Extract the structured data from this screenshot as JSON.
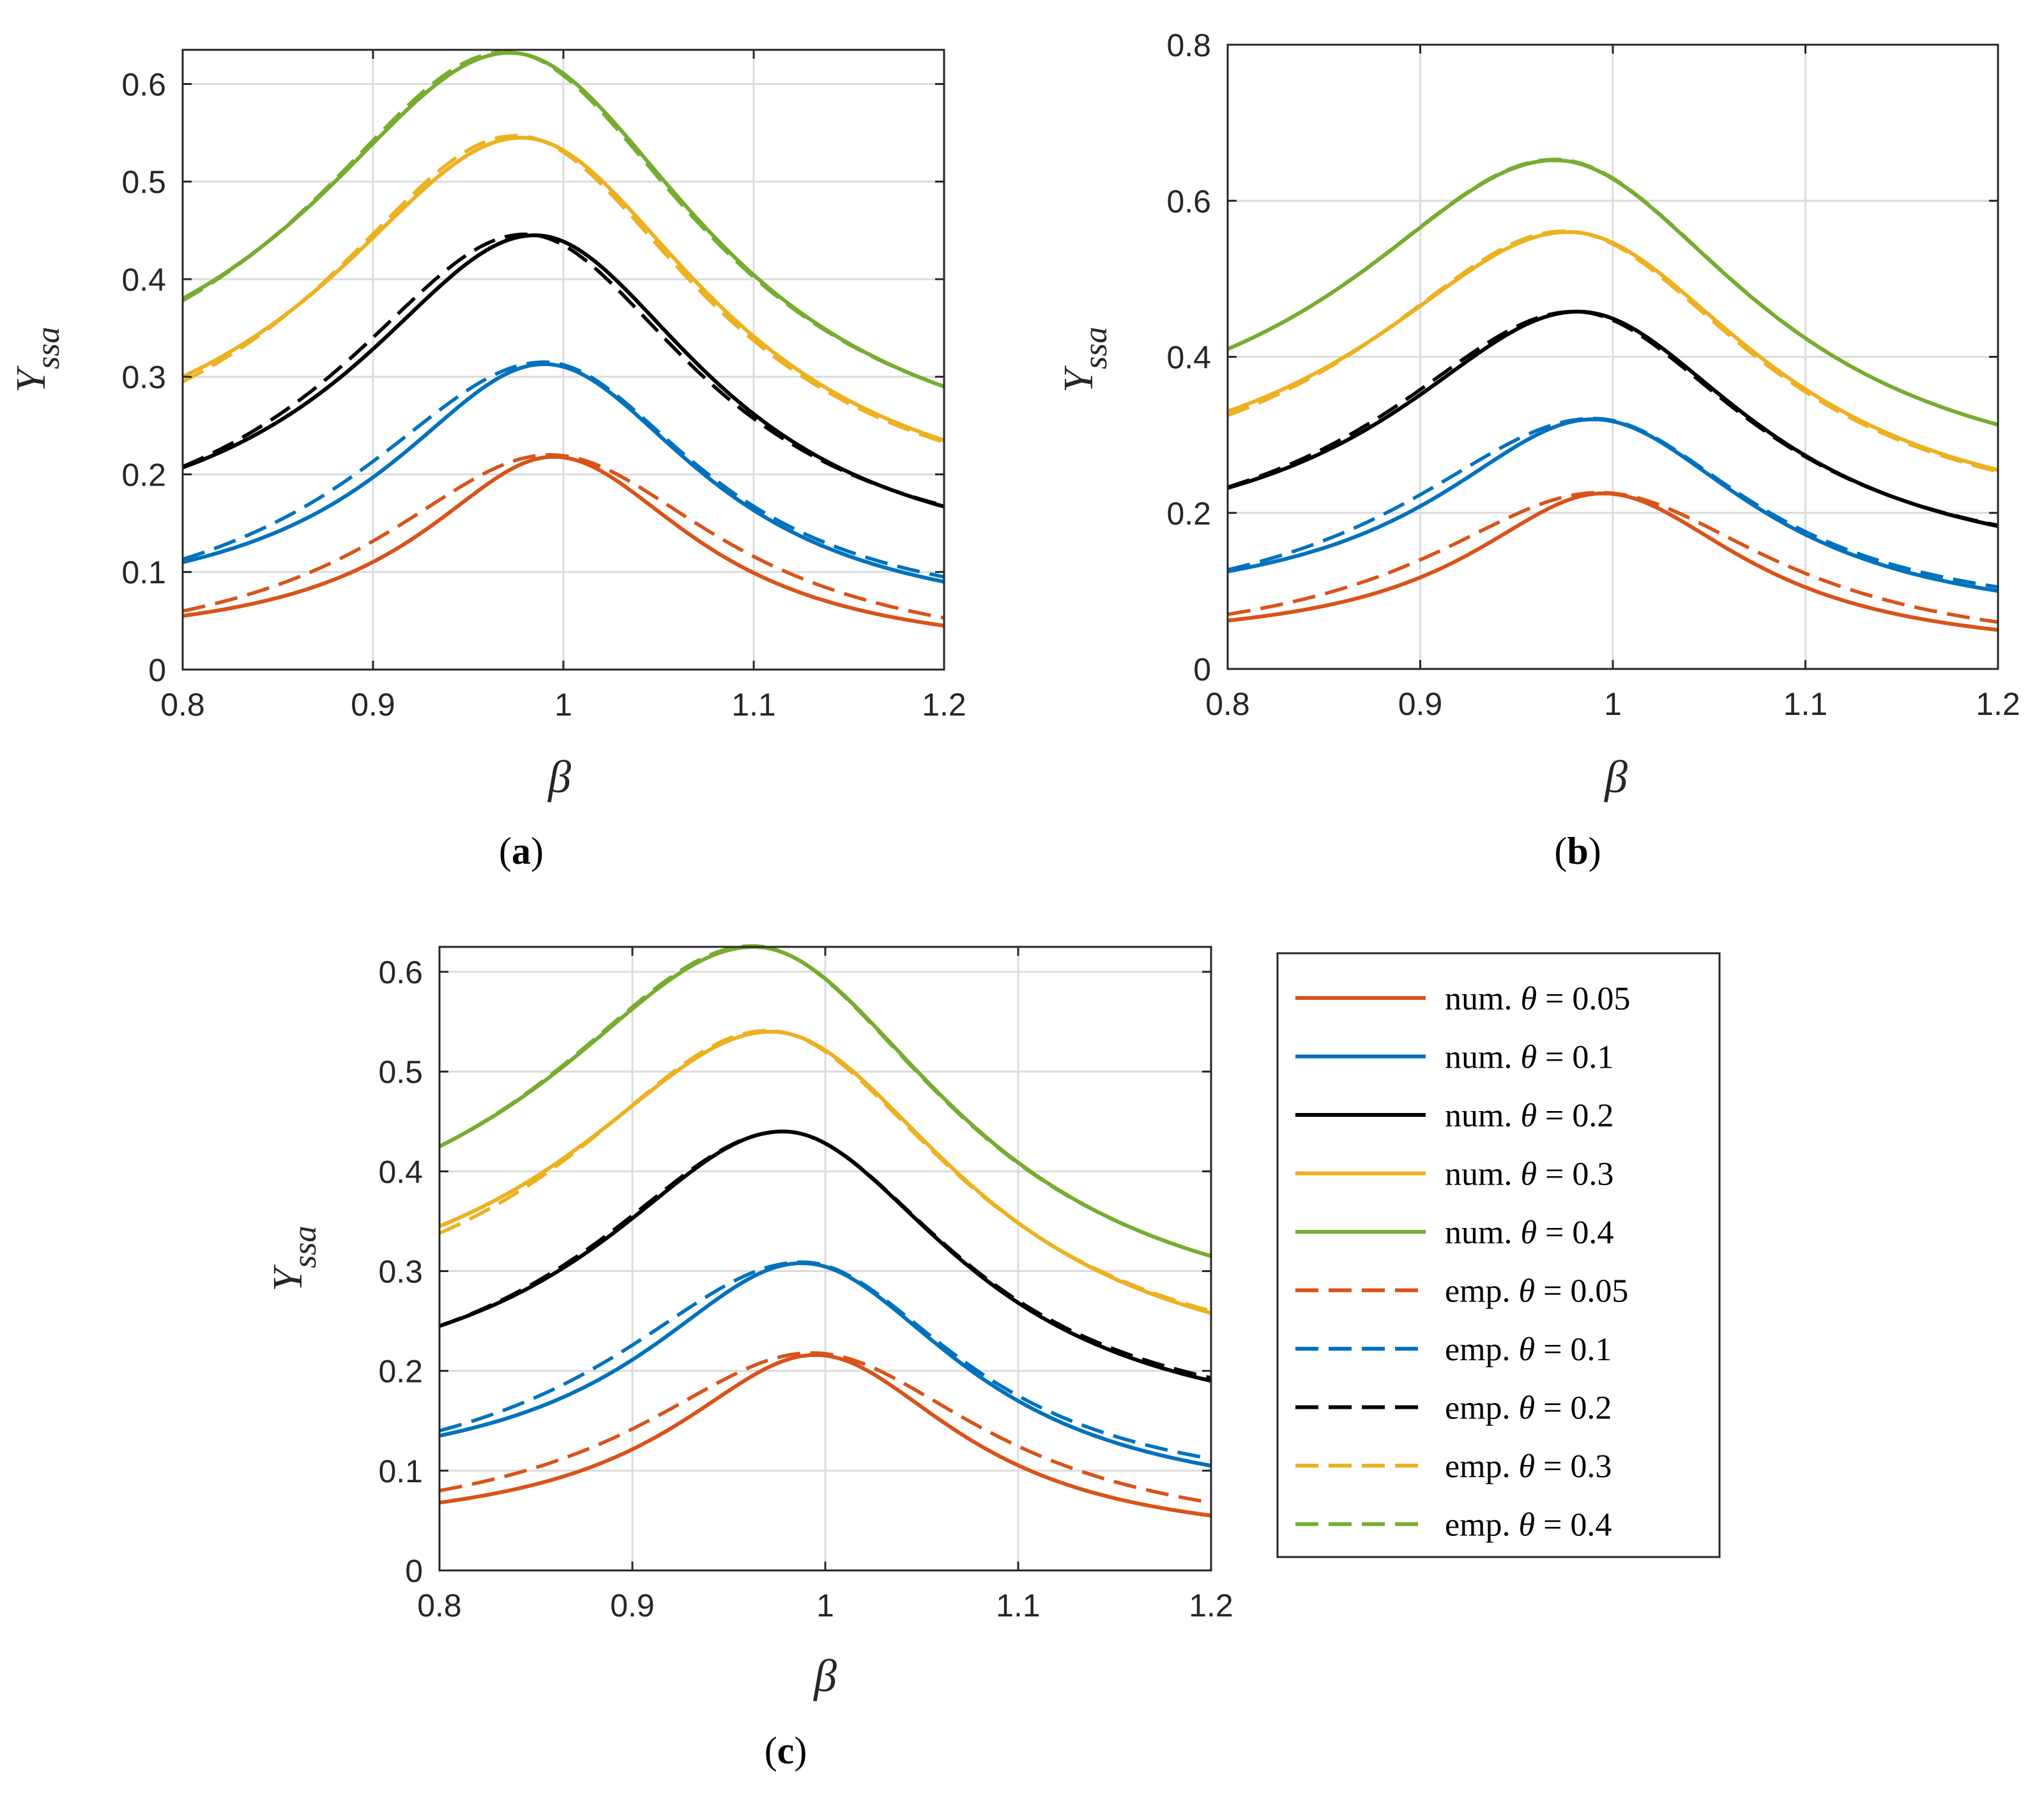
{
  "chart_data": [
    {
      "type": "line",
      "panel_label": "a",
      "xlabel": "β",
      "ylabel_main": "Y",
      "ylabel_sub": "ssa",
      "xlim": [
        0.8,
        1.2
      ],
      "ylim": [
        0,
        0.635
      ],
      "xticks": [
        0.8,
        0.9,
        1.0,
        1.1,
        1.2
      ],
      "xtick_labels": [
        "0.8",
        "0.9",
        "1",
        "1.1",
        "1.2"
      ],
      "yticks": [
        0,
        0.1,
        0.2,
        0.3,
        0.4,
        0.5,
        0.6
      ],
      "ytick_labels": [
        "0",
        "0.1",
        "0.2",
        "0.3",
        "0.4",
        "0.5",
        "0.6"
      ],
      "grid": true,
      "series": [
        {
          "name": "num. θ = 0.05",
          "kind": "num",
          "color": "#D95319",
          "peak_x": 0.995,
          "peak_y": 0.218,
          "left_y": 0.055,
          "right_y": 0.045,
          "wl": 0.085,
          "wr": 0.09
        },
        {
          "name": "num. θ = 0.1",
          "kind": "num",
          "color": "#0072BD",
          "peak_x": 0.99,
          "peak_y": 0.313,
          "left_y": 0.11,
          "right_y": 0.09,
          "wl": 0.1,
          "wr": 0.1
        },
        {
          "name": "num. θ = 0.2",
          "kind": "num",
          "color": "#000000",
          "peak_x": 0.985,
          "peak_y": 0.445,
          "left_y": 0.207,
          "right_y": 0.167,
          "wl": 0.115,
          "wr": 0.11
        },
        {
          "name": "num. θ = 0.3",
          "kind": "num",
          "color": "#EDB120",
          "peak_x": 0.978,
          "peak_y": 0.545,
          "left_y": 0.3,
          "right_y": 0.235,
          "wl": 0.125,
          "wr": 0.12
        },
        {
          "name": "num. θ = 0.4",
          "kind": "num",
          "color": "#77AC30",
          "peak_x": 0.972,
          "peak_y": 0.632,
          "left_y": 0.38,
          "right_y": 0.29,
          "wl": 0.13,
          "wr": 0.125
        },
        {
          "name": "emp. θ = 0.05",
          "kind": "emp",
          "color": "#D95319",
          "peak_x": 0.993,
          "peak_y": 0.22,
          "left_y": 0.06,
          "right_y": 0.053,
          "wl": 0.11,
          "wr": 0.11
        },
        {
          "name": "emp. θ = 0.1",
          "kind": "emp",
          "color": "#0072BD",
          "peak_x": 0.99,
          "peak_y": 0.315,
          "left_y": 0.113,
          "right_y": 0.095,
          "wl": 0.12,
          "wr": 0.1
        },
        {
          "name": "emp. θ = 0.2",
          "kind": "emp",
          "color": "#000000",
          "peak_x": 0.98,
          "peak_y": 0.446,
          "left_y": 0.208,
          "right_y": 0.168,
          "wl": 0.12,
          "wr": 0.11
        },
        {
          "name": "emp. θ = 0.3",
          "kind": "emp",
          "color": "#EDB120",
          "peak_x": 0.975,
          "peak_y": 0.547,
          "left_y": 0.295,
          "right_y": 0.233,
          "wl": 0.125,
          "wr": 0.12
        },
        {
          "name": "emp. θ = 0.4",
          "kind": "emp",
          "color": "#77AC30",
          "peak_x": 0.97,
          "peak_y": 0.633,
          "left_y": 0.378,
          "right_y": 0.29,
          "wl": 0.13,
          "wr": 0.125
        }
      ]
    },
    {
      "type": "line",
      "panel_label": "b",
      "xlabel": "β",
      "ylabel_main": "Y",
      "ylabel_sub": "ssa",
      "xlim": [
        0.8,
        1.2
      ],
      "ylim": [
        0,
        0.8
      ],
      "xticks": [
        0.8,
        0.9,
        1.0,
        1.1,
        1.2
      ],
      "xtick_labels": [
        "0.8",
        "0.9",
        "1",
        "1.1",
        "1.2"
      ],
      "yticks": [
        0,
        0.2,
        0.4,
        0.6,
        0.8
      ],
      "ytick_labels": [
        "0",
        "0.2",
        "0.4",
        "0.6",
        "0.8"
      ],
      "grid": true,
      "series": [
        {
          "name": "num. θ = 0.05",
          "kind": "num",
          "color": "#D95319",
          "peak_x": 0.995,
          "peak_y": 0.225,
          "left_y": 0.062,
          "right_y": 0.05,
          "wl": 0.085,
          "wr": 0.09
        },
        {
          "name": "num. θ = 0.1",
          "kind": "num",
          "color": "#0072BD",
          "peak_x": 0.99,
          "peak_y": 0.32,
          "left_y": 0.125,
          "right_y": 0.1,
          "wl": 0.1,
          "wr": 0.1
        },
        {
          "name": "num. θ = 0.2",
          "kind": "num",
          "color": "#000000",
          "peak_x": 0.982,
          "peak_y": 0.458,
          "left_y": 0.232,
          "right_y": 0.183,
          "wl": 0.115,
          "wr": 0.11
        },
        {
          "name": "num. θ = 0.3",
          "kind": "num",
          "color": "#EDB120",
          "peak_x": 0.977,
          "peak_y": 0.56,
          "left_y": 0.33,
          "right_y": 0.255,
          "wl": 0.125,
          "wr": 0.12
        },
        {
          "name": "num. θ = 0.4",
          "kind": "num",
          "color": "#77AC30",
          "peak_x": 0.97,
          "peak_y": 0.652,
          "left_y": 0.41,
          "right_y": 0.313,
          "wl": 0.13,
          "wr": 0.125
        },
        {
          "name": "emp. θ = 0.05",
          "kind": "emp",
          "color": "#D95319",
          "peak_x": 0.993,
          "peak_y": 0.226,
          "left_y": 0.07,
          "right_y": 0.06,
          "wl": 0.11,
          "wr": 0.11
        },
        {
          "name": "emp. θ = 0.1",
          "kind": "emp",
          "color": "#0072BD",
          "peak_x": 0.99,
          "peak_y": 0.321,
          "left_y": 0.127,
          "right_y": 0.105,
          "wl": 0.12,
          "wr": 0.1
        },
        {
          "name": "emp. θ = 0.2",
          "kind": "emp",
          "color": "#000000",
          "peak_x": 0.98,
          "peak_y": 0.458,
          "left_y": 0.233,
          "right_y": 0.184,
          "wl": 0.12,
          "wr": 0.11
        },
        {
          "name": "emp. θ = 0.3",
          "kind": "emp",
          "color": "#EDB120",
          "peak_x": 0.975,
          "peak_y": 0.561,
          "left_y": 0.325,
          "right_y": 0.253,
          "wl": 0.125,
          "wr": 0.12
        },
        {
          "name": "emp. θ = 0.4",
          "kind": "emp",
          "color": "#77AC30",
          "peak_x": 0.97,
          "peak_y": 0.653,
          "left_y": 0.41,
          "right_y": 0.313,
          "wl": 0.13,
          "wr": 0.125
        }
      ]
    },
    {
      "type": "line",
      "panel_label": "c",
      "xlabel": "β",
      "ylabel_main": "Y",
      "ylabel_sub": "ssa",
      "xlim": [
        0.8,
        1.2
      ],
      "ylim": [
        0,
        0.625
      ],
      "xticks": [
        0.8,
        0.9,
        1.0,
        1.1,
        1.2
      ],
      "xtick_labels": [
        "0.8",
        "0.9",
        "1",
        "1.1",
        "1.2"
      ],
      "yticks": [
        0,
        0.1,
        0.2,
        0.3,
        0.4,
        0.5,
        0.6
      ],
      "ytick_labels": [
        "0",
        "0.1",
        "0.2",
        "0.3",
        "0.4",
        "0.5",
        "0.6"
      ],
      "grid": true,
      "series": [
        {
          "name": "num. θ = 0.05",
          "kind": "num",
          "color": "#D95319",
          "peak_x": 0.995,
          "peak_y": 0.216,
          "left_y": 0.068,
          "right_y": 0.055,
          "wl": 0.09,
          "wr": 0.09
        },
        {
          "name": "num. θ = 0.1",
          "kind": "num",
          "color": "#0072BD",
          "peak_x": 0.988,
          "peak_y": 0.308,
          "left_y": 0.135,
          "right_y": 0.105,
          "wl": 0.1,
          "wr": 0.1
        },
        {
          "name": "num. θ = 0.2",
          "kind": "num",
          "color": "#000000",
          "peak_x": 0.978,
          "peak_y": 0.44,
          "left_y": 0.245,
          "right_y": 0.19,
          "wl": 0.115,
          "wr": 0.11
        },
        {
          "name": "num. θ = 0.3",
          "kind": "num",
          "color": "#EDB120",
          "peak_x": 0.972,
          "peak_y": 0.54,
          "left_y": 0.345,
          "right_y": 0.258,
          "wl": 0.125,
          "wr": 0.12
        },
        {
          "name": "num. θ = 0.4",
          "kind": "num",
          "color": "#77AC30",
          "peak_x": 0.963,
          "peak_y": 0.625,
          "left_y": 0.425,
          "right_y": 0.315,
          "wl": 0.13,
          "wr": 0.125
        },
        {
          "name": "emp. θ = 0.05",
          "kind": "emp",
          "color": "#D95319",
          "peak_x": 0.993,
          "peak_y": 0.218,
          "left_y": 0.08,
          "right_y": 0.068,
          "wl": 0.11,
          "wr": 0.11
        },
        {
          "name": "emp. θ = 0.1",
          "kind": "emp",
          "color": "#0072BD",
          "peak_x": 0.988,
          "peak_y": 0.309,
          "left_y": 0.14,
          "right_y": 0.112,
          "wl": 0.12,
          "wr": 0.1
        },
        {
          "name": "emp. θ = 0.2",
          "kind": "emp",
          "color": "#000000",
          "peak_x": 0.978,
          "peak_y": 0.44,
          "left_y": 0.245,
          "right_y": 0.193,
          "wl": 0.12,
          "wr": 0.11
        },
        {
          "name": "emp. θ = 0.3",
          "kind": "emp",
          "color": "#EDB120",
          "peak_x": 0.97,
          "peak_y": 0.541,
          "left_y": 0.338,
          "right_y": 0.26,
          "wl": 0.125,
          "wr": 0.12
        },
        {
          "name": "emp. θ = 0.4",
          "kind": "emp",
          "color": "#77AC30",
          "peak_x": 0.962,
          "peak_y": 0.626,
          "left_y": 0.425,
          "right_y": 0.315,
          "wl": 0.13,
          "wr": 0.125
        }
      ]
    }
  ],
  "legend": {
    "placement": "right of panel c",
    "entries": [
      {
        "prefix": "num.",
        "theta": "θ",
        "value": "= 0.05",
        "color": "#D95319",
        "style": "solid"
      },
      {
        "prefix": "num.",
        "theta": "θ",
        "value": "= 0.1",
        "color": "#0072BD",
        "style": "solid"
      },
      {
        "prefix": "num.",
        "theta": "θ",
        "value": "= 0.2",
        "color": "#000000",
        "style": "solid"
      },
      {
        "prefix": "num.",
        "theta": "θ",
        "value": "= 0.3",
        "color": "#EDB120",
        "style": "solid"
      },
      {
        "prefix": "num.",
        "theta": "θ",
        "value": "= 0.4",
        "color": "#77AC30",
        "style": "solid"
      },
      {
        "prefix": "emp.",
        "theta": "θ",
        "value": "= 0.05",
        "color": "#D95319",
        "style": "dashed"
      },
      {
        "prefix": "emp.",
        "theta": "θ",
        "value": "= 0.1",
        "color": "#0072BD",
        "style": "dashed"
      },
      {
        "prefix": "emp.",
        "theta": "θ",
        "value": "= 0.2",
        "color": "#000000",
        "style": "dashed"
      },
      {
        "prefix": "emp.",
        "theta": "θ",
        "value": "= 0.3",
        "color": "#EDB120",
        "style": "dashed"
      },
      {
        "prefix": "emp.",
        "theta": "θ",
        "value": "= 0.4",
        "color": "#77AC30",
        "style": "dashed"
      }
    ]
  }
}
